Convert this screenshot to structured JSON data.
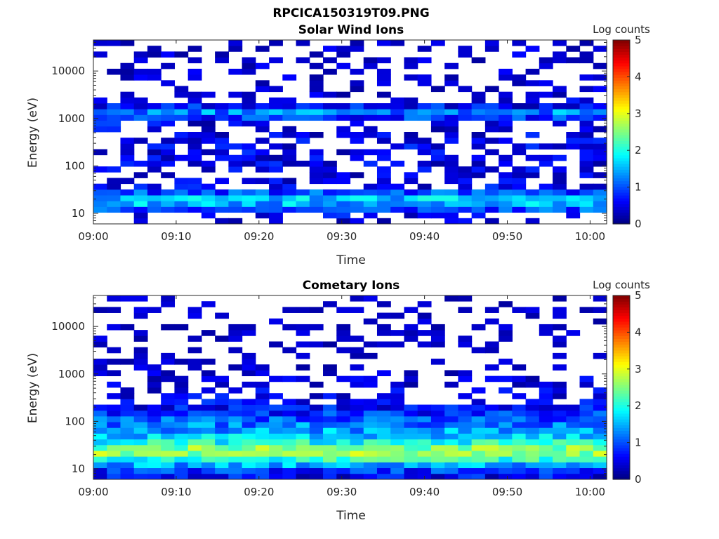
{
  "figure": {
    "title": "RPCICA150319T09.PNG"
  },
  "chart_data": [
    {
      "type": "heatmap",
      "title": "Solar Wind Ions",
      "xlabel": "Time",
      "ylabel": "Energy (eV)",
      "x_ticks": [
        "09:00",
        "09:10",
        "09:20",
        "09:30",
        "09:40",
        "09:50",
        "10:00"
      ],
      "x_range": [
        "09:00",
        "10:02"
      ],
      "y_scale": "log",
      "y_ticks": [
        "10",
        "100",
        "1000",
        "10000"
      ],
      "ylim": [
        6,
        45000
      ],
      "colorbar": {
        "label": "Log counts",
        "ticks": [
          "0",
          "1",
          "2",
          "3",
          "4",
          "5"
        ],
        "range": [
          0,
          5
        ],
        "colormap": "jet"
      },
      "profile": [
        {
          "energy": 8,
          "value": 0.3
        },
        {
          "energy": 10,
          "value": 0.6
        },
        {
          "energy": 13,
          "value": 1.1
        },
        {
          "energy": 16,
          "value": 1.5
        },
        {
          "energy": 20,
          "value": 1.7
        },
        {
          "energy": 25,
          "value": 1.2
        },
        {
          "energy": 32,
          "value": 0.6
        },
        {
          "energy": 40,
          "value": 0.4
        },
        {
          "energy": 60,
          "value": 0.3
        },
        {
          "energy": 100,
          "value": 0.4
        },
        {
          "energy": 150,
          "value": 0.5
        },
        {
          "energy": 250,
          "value": 0.5
        },
        {
          "energy": 400,
          "value": 0.4
        },
        {
          "energy": 700,
          "value": 0.4
        },
        {
          "energy": 1100,
          "value": 0.9
        },
        {
          "energy": 1400,
          "value": 1.3
        },
        {
          "energy": 2000,
          "value": 0.4
        },
        {
          "energy": 3000,
          "value": 0.2
        },
        {
          "energy": 6000,
          "value": 0.2
        },
        {
          "energy": 15000,
          "value": 0.2
        },
        {
          "energy": 30000,
          "value": 0.2
        }
      ]
    },
    {
      "type": "heatmap",
      "title": "Cometary Ions",
      "xlabel": "Time",
      "ylabel": "Energy (eV)",
      "x_ticks": [
        "09:00",
        "09:10",
        "09:20",
        "09:30",
        "09:40",
        "09:50",
        "10:00"
      ],
      "x_range": [
        "09:00",
        "10:02"
      ],
      "y_scale": "log",
      "y_ticks": [
        "10",
        "100",
        "1000",
        "10000"
      ],
      "ylim": [
        6,
        45000
      ],
      "colorbar": {
        "label": "Log counts",
        "ticks": [
          "0",
          "1",
          "2",
          "3",
          "4",
          "5"
        ],
        "range": [
          0,
          5
        ],
        "colormap": "jet"
      },
      "profile": [
        {
          "energy": 8,
          "value": 0.6
        },
        {
          "energy": 10,
          "value": 1.0
        },
        {
          "energy": 13,
          "value": 1.6
        },
        {
          "energy": 16,
          "value": 2.1
        },
        {
          "energy": 20,
          "value": 2.6
        },
        {
          "energy": 25,
          "value": 2.7
        },
        {
          "energy": 32,
          "value": 2.2
        },
        {
          "energy": 40,
          "value": 1.8
        },
        {
          "energy": 60,
          "value": 1.5
        },
        {
          "energy": 100,
          "value": 1.1
        },
        {
          "energy": 150,
          "value": 0.8
        },
        {
          "energy": 250,
          "value": 0.5
        },
        {
          "energy": 400,
          "value": 0.4
        },
        {
          "energy": 700,
          "value": 0.3
        },
        {
          "energy": 1100,
          "value": 0.2
        },
        {
          "energy": 2500,
          "value": 0.1
        },
        {
          "energy": 25000,
          "value": 0.1
        }
      ]
    }
  ]
}
